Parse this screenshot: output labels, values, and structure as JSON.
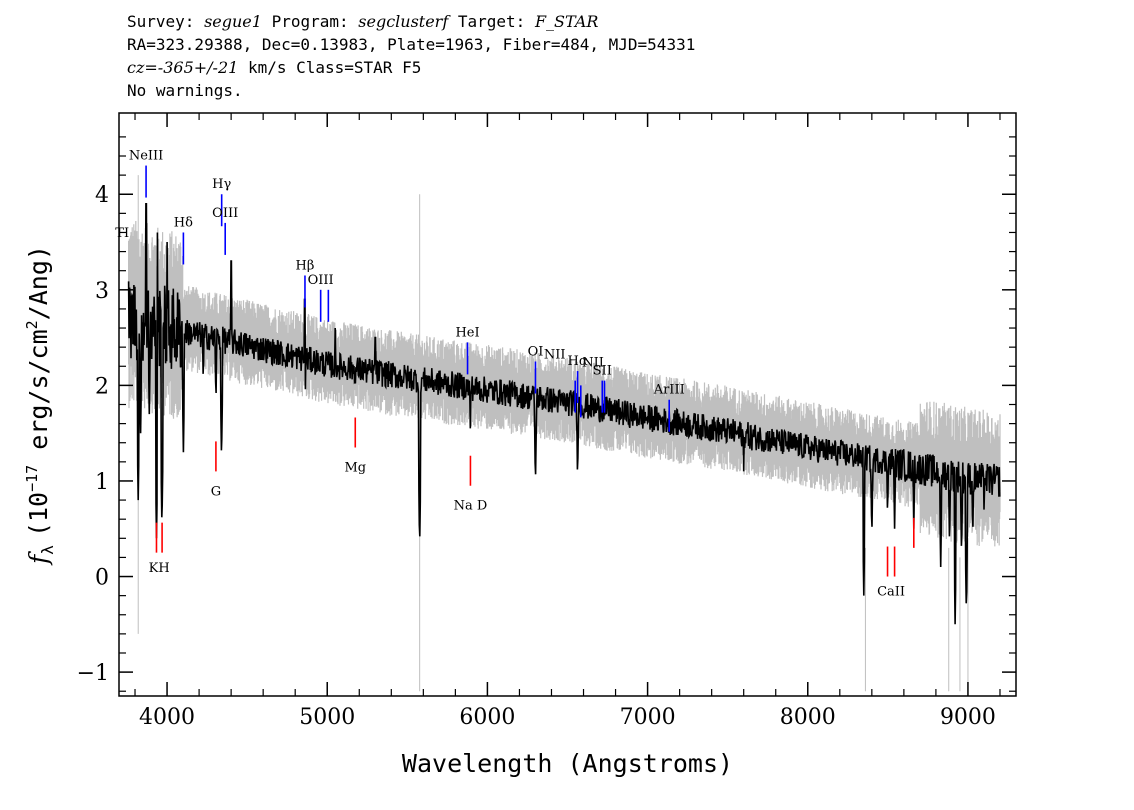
{
  "header": {
    "line1": {
      "survey_label": "Survey: ",
      "survey": "segue1",
      "program_label": " Program: ",
      "program": "segclusterf",
      "target_label": " Target: ",
      "target": "F_STAR"
    },
    "line2": "RA=323.29388, Dec=0.13983, Plate=1963, Fiber=484, MJD=54331",
    "line3": {
      "cz": "cz=-365+/-21",
      "rest": " km/s Class=STAR F5"
    },
    "line4": "No warnings."
  },
  "chart_data": {
    "type": "line",
    "xlabel": "Wavelength (Angstroms)",
    "ylabel": "f_λ (10^-17 erg/s/cm^2/Ang)",
    "ylabel_parts": {
      "symbol": "f",
      "sub": "λ",
      "pre": "(10",
      "exp": "−17",
      "mid": " erg/s/cm",
      "exp2": "2",
      "post": "/Ang)"
    },
    "xlim": [
      3700,
      9300
    ],
    "ylim": [
      -1.25,
      4.85
    ],
    "xticks": [
      4000,
      5000,
      6000,
      7000,
      8000,
      9000
    ],
    "yticks": [
      -1,
      0,
      1,
      2,
      3,
      4
    ],
    "ytick_labels": [
      "−1",
      "0",
      "1",
      "2",
      "3",
      "4"
    ],
    "series": [
      {
        "role": "noise-envelope",
        "color": "#bfbfbf",
        "anchors": [
          [
            3800,
            2.75
          ],
          [
            4000,
            2.65
          ],
          [
            4500,
            2.45
          ],
          [
            5000,
            2.25
          ],
          [
            5500,
            2.1
          ],
          [
            6000,
            1.98
          ],
          [
            6500,
            1.85
          ],
          [
            7000,
            1.68
          ],
          [
            7500,
            1.55
          ],
          [
            8000,
            1.38
          ],
          [
            8500,
            1.22
          ],
          [
            9000,
            1.05
          ],
          [
            9200,
            1.0
          ]
        ],
        "band": 0.3
      },
      {
        "role": "flux",
        "color": "#000000",
        "anchors": [
          [
            3800,
            2.7
          ],
          [
            4000,
            2.6
          ],
          [
            4500,
            2.42
          ],
          [
            5000,
            2.22
          ],
          [
            5500,
            2.08
          ],
          [
            6000,
            1.95
          ],
          [
            6500,
            1.82
          ],
          [
            7000,
            1.66
          ],
          [
            7500,
            1.52
          ],
          [
            8000,
            1.35
          ],
          [
            8500,
            1.2
          ],
          [
            9000,
            1.03
          ],
          [
            9200,
            1.0
          ]
        ],
        "absorption": [
          [
            3820,
            0.8
          ],
          [
            3835,
            1.5
          ],
          [
            3889,
            1.7
          ],
          [
            3934,
            0.4
          ],
          [
            3968,
            0.5
          ],
          [
            4102,
            1.3
          ],
          [
            4226,
            2.0
          ],
          [
            4305,
            1.8
          ],
          [
            4340,
            1.2
          ],
          [
            4861,
            1.6
          ],
          [
            5175,
            1.9
          ],
          [
            5577,
            0.3
          ],
          [
            5893,
            1.55
          ],
          [
            6300,
            0.95
          ],
          [
            6563,
            1.0
          ],
          [
            7600,
            1.1
          ],
          [
            7650,
            1.2
          ],
          [
            8350,
            -0.2
          ],
          [
            8400,
            0.4
          ],
          [
            8498,
            0.6
          ],
          [
            8542,
            0.5
          ],
          [
            8662,
            0.5
          ],
          [
            8830,
            0.1
          ],
          [
            8885,
            0.3
          ],
          [
            8920,
            -0.5
          ],
          [
            8960,
            0.2
          ],
          [
            8990,
            -0.4
          ],
          [
            9030,
            0.4
          ],
          [
            9100,
            0.7
          ]
        ],
        "spikes": [
          [
            3870,
            3.9
          ],
          [
            3940,
            3.6
          ],
          [
            4000,
            3.5
          ],
          [
            4400,
            3.3
          ],
          [
            4860,
            2.9
          ],
          [
            5050,
            2.6
          ],
          [
            5300,
            2.5
          ]
        ]
      }
    ],
    "emission_lines": [
      {
        "label": "NeIII",
        "x": 3869,
        "y": 4.3,
        "label_pos": "above"
      },
      {
        "label": "Hδ",
        "x": 4102,
        "y": 3.6,
        "label_pos": "above"
      },
      {
        "label": "Hγ",
        "x": 4341,
        "y": 4.0,
        "label_pos": "above"
      },
      {
        "label": "OIII",
        "x": 4363,
        "y": 3.7,
        "label_pos": "above"
      },
      {
        "label": "Hβ",
        "x": 4861,
        "y": 3.15,
        "label_pos": "above"
      },
      {
        "label": "OIII",
        "x": 4959,
        "y": 3.0,
        "label_pos": "above"
      },
      {
        "label": "OIII",
        "x": 5007,
        "y": 3.0,
        "label_pos": "none"
      },
      {
        "label": "HeI",
        "x": 5876,
        "y": 2.45,
        "label_pos": "above"
      },
      {
        "label": "OI",
        "x": 6300,
        "y": 2.25,
        "label_pos": "above"
      },
      {
        "label": "NII",
        "x": 6548,
        "y": 2.05,
        "label_pos": "none"
      },
      {
        "label": "Hα",
        "x": 6563,
        "y": 2.15,
        "label_pos": "above"
      },
      {
        "label": "NII",
        "x": 6583,
        "y": 2.0,
        "label_pos": "none"
      },
      {
        "label": "SII",
        "x": 6717,
        "y": 2.05,
        "label_pos": "above"
      },
      {
        "label": "SII",
        "x": 6731,
        "y": 2.05,
        "label_pos": "none"
      },
      {
        "label": "ArIII",
        "x": 7135,
        "y": 1.85,
        "label_pos": "above"
      }
    ],
    "extra_line_labels": [
      {
        "label": "NII",
        "x": 6420,
        "y": 2.28
      },
      {
        "label": "NII",
        "x": 6660,
        "y": 2.2
      },
      {
        "label": "TI",
        "x": 3720,
        "y": 3.55
      }
    ],
    "absorption_lines": [
      {
        "label": "K",
        "x": 3934,
        "y": 0.25
      },
      {
        "label": "H",
        "x": 3969,
        "y": 0.25
      },
      {
        "label": "G",
        "x": 4305,
        "y": 1.1
      },
      {
        "label": "Mg",
        "x": 5175,
        "y": 1.35
      },
      {
        "label": "Na D",
        "x": 5894,
        "y": 0.95
      },
      {
        "label": "CaII",
        "x": 8498,
        "y": 0.0
      },
      {
        "label": "CaII",
        "x": 8542,
        "y": 0.0
      },
      {
        "label": "CaII",
        "x": 8662,
        "y": 0.3
      }
    ],
    "absorption_label_text": {
      "kh": "KH",
      "g": "G",
      "mg": "Mg",
      "nad": "Na D",
      "caii": "CaII"
    },
    "colors": {
      "emission": "#0000ff",
      "absorption": "#ff0000",
      "flux": "#000000",
      "noise": "#bfbfbf"
    }
  }
}
